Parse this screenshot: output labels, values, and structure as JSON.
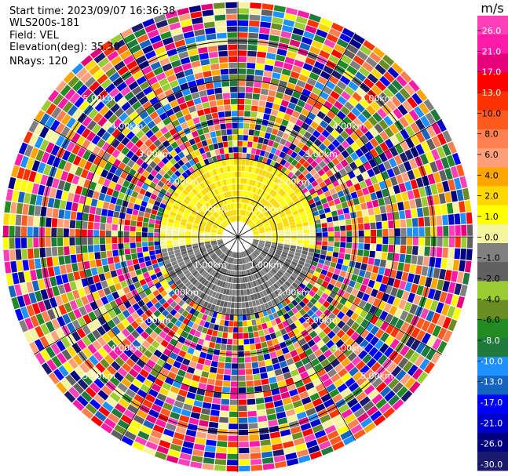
{
  "info": {
    "start_time_label": "Start time:",
    "start_time": "2023/09/07 16:36:38",
    "instrument": "WLS200s-181",
    "field_label": "Field:",
    "field": "VEL",
    "elevation_label": "Elevation(deg):",
    "elevation": "35.30",
    "nrays_label": "NRays:",
    "nrays": "120"
  },
  "colorbar": {
    "unit": "m/s",
    "ticks": [
      "26.0",
      "21.0",
      "17.0",
      "13.0",
      "10.0",
      "8.0",
      "6.0",
      "4.0",
      "2.0",
      "1.0",
      "0.0",
      "-1.0",
      "-2.0",
      "-4.0",
      "-6.0",
      "-8.0",
      "-10.0",
      "-13.0",
      "-17.0",
      "-21.0",
      "-26.0",
      "-30.0"
    ],
    "colors": [
      "#ff40b8",
      "#ff1aa8",
      "#e6007a",
      "#ff0000",
      "#ff3300",
      "#ff5a1f",
      "#ff7f50",
      "#ffa07a",
      "#ffa500",
      "#ffd700",
      "#ffff00",
      "#f5f5a0",
      "#808080",
      "#606060",
      "#9acd32",
      "#6b8e23",
      "#228b22",
      "#1e7a3a",
      "#1e90ff",
      "#1565c0",
      "#0000ff",
      "#0000cd",
      "#000080",
      "#1a1a6e"
    ]
  },
  "chart_data": {
    "type": "heatmap",
    "field": "VEL",
    "unit": "m/s",
    "nrays": 120,
    "elevation_deg": 35.3,
    "range_rings_km": [
      1.0,
      2.0,
      3.0,
      4.0,
      5.0
    ],
    "ring_labels": [
      "1.00km",
      "2.00km",
      "3.00km",
      "4.00km",
      "5.00km"
    ],
    "vmin": -30.0,
    "vmax": 26.0,
    "valid_range_km": 2.0,
    "noise_from_km": 2.0,
    "pattern": "north half positive (approx 1 to 4 m/s), south half negative (approx -2 to -6 m/s), noise beyond 2 km"
  }
}
